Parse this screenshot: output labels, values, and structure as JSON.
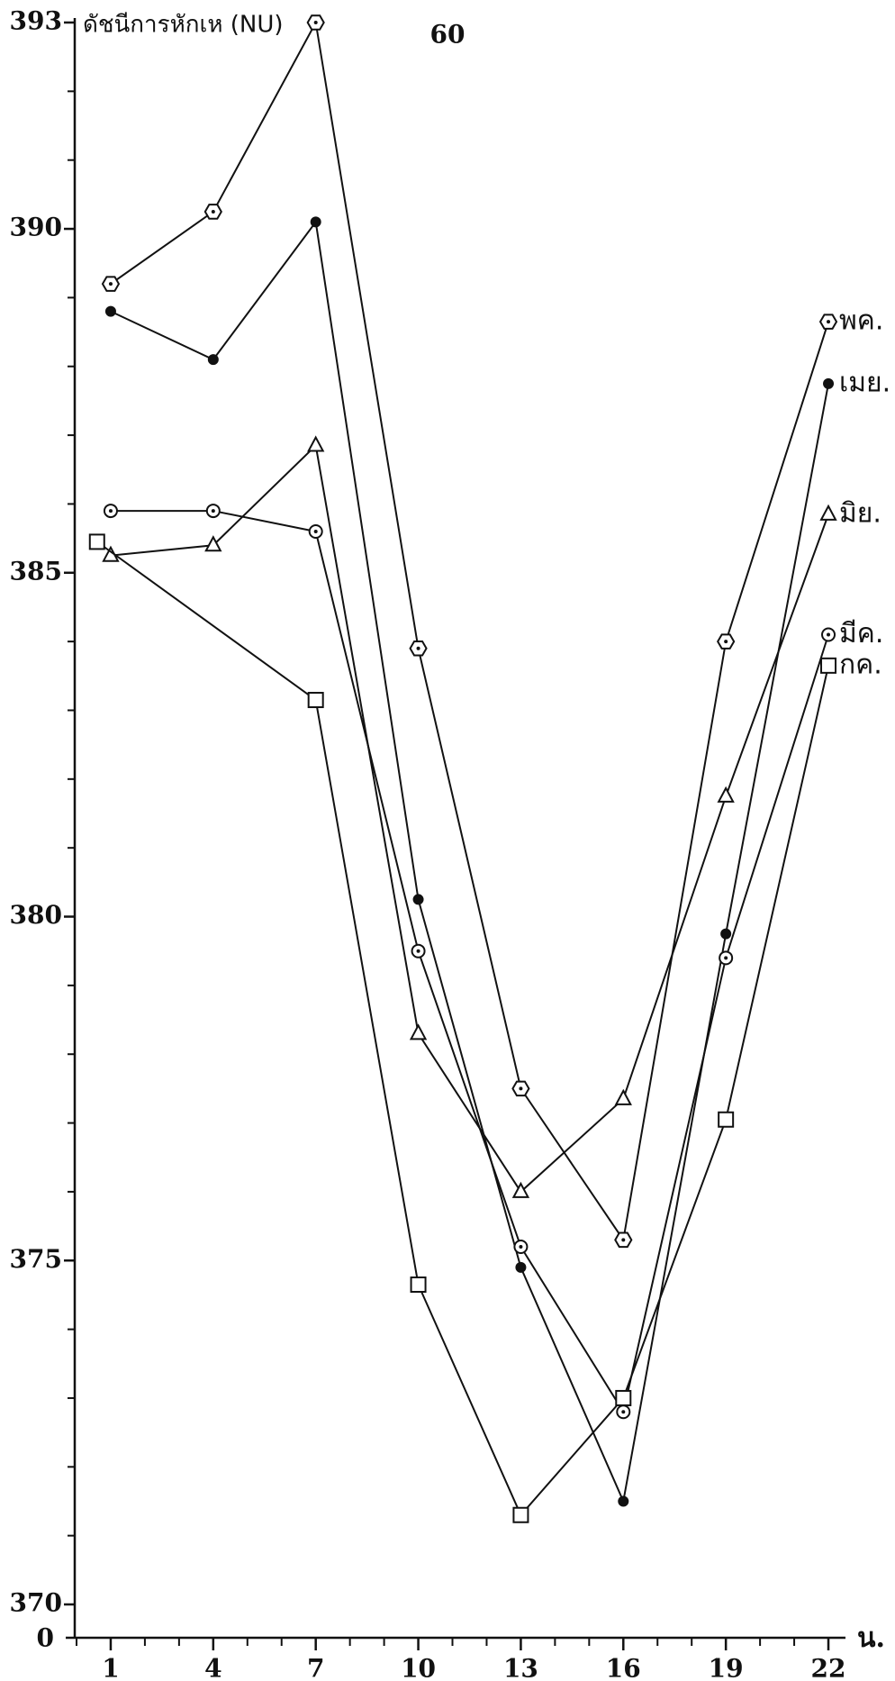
{
  "chart_data": {
    "type": "line",
    "title": "60",
    "y_label": "ดัชนีการหักเห (NU)",
    "x_label": "น.",
    "y_origin_label": "0",
    "series": [
      {
        "name": "พค.",
        "color": "#111111",
        "marker": "hexagon",
        "x": [
          1,
          4,
          7,
          10,
          13,
          16,
          19,
          22
        ],
        "values": [
          389.2,
          390.25,
          393.0,
          383.9,
          377.5,
          375.3,
          384.0,
          388.65
        ]
      },
      {
        "name": "เมย.",
        "color": "#111111",
        "marker": "dot",
        "x": [
          1,
          4,
          7,
          10,
          13,
          16,
          19,
          22
        ],
        "values": [
          388.8,
          388.1,
          390.1,
          380.25,
          374.9,
          371.5,
          379.75,
          387.75
        ]
      },
      {
        "name": "มิย.",
        "color": "#111111",
        "marker": "triangle",
        "x": [
          1,
          4,
          7,
          10,
          13,
          16,
          19,
          22
        ],
        "values": [
          385.25,
          385.4,
          386.85,
          378.3,
          376.0,
          377.35,
          381.75,
          385.85
        ]
      },
      {
        "name": "มีค.",
        "color": "#111111",
        "marker": "circle",
        "x": [
          1,
          4,
          7,
          10,
          13,
          16,
          19,
          22
        ],
        "values": [
          385.9,
          385.9,
          385.6,
          379.5,
          375.2,
          372.8,
          379.4,
          384.1
        ]
      },
      {
        "name": "กค.",
        "color": "#111111",
        "marker": "square",
        "x": [
          0.6,
          7,
          10,
          13,
          16,
          19,
          22
        ],
        "values": [
          385.45,
          383.15,
          374.65,
          371.3,
          373.0,
          377.05,
          383.65
        ]
      }
    ],
    "xlim": [
      0,
      22.5
    ],
    "ylim": [
      370,
      393
    ],
    "xticks": [
      1,
      4,
      7,
      10,
      13,
      16,
      19,
      22
    ],
    "yticks": [
      370,
      375,
      380,
      385,
      390,
      393
    ],
    "x_minor_ticks": [
      0,
      2,
      3,
      5,
      6,
      8,
      9,
      11,
      12,
      14,
      15,
      17,
      18,
      20,
      21
    ],
    "y_minor_ticks": [
      371,
      372,
      373,
      374,
      376,
      377,
      378,
      379,
      381,
      382,
      383,
      384,
      386,
      387,
      388,
      389,
      391,
      392
    ],
    "grid": false
  }
}
